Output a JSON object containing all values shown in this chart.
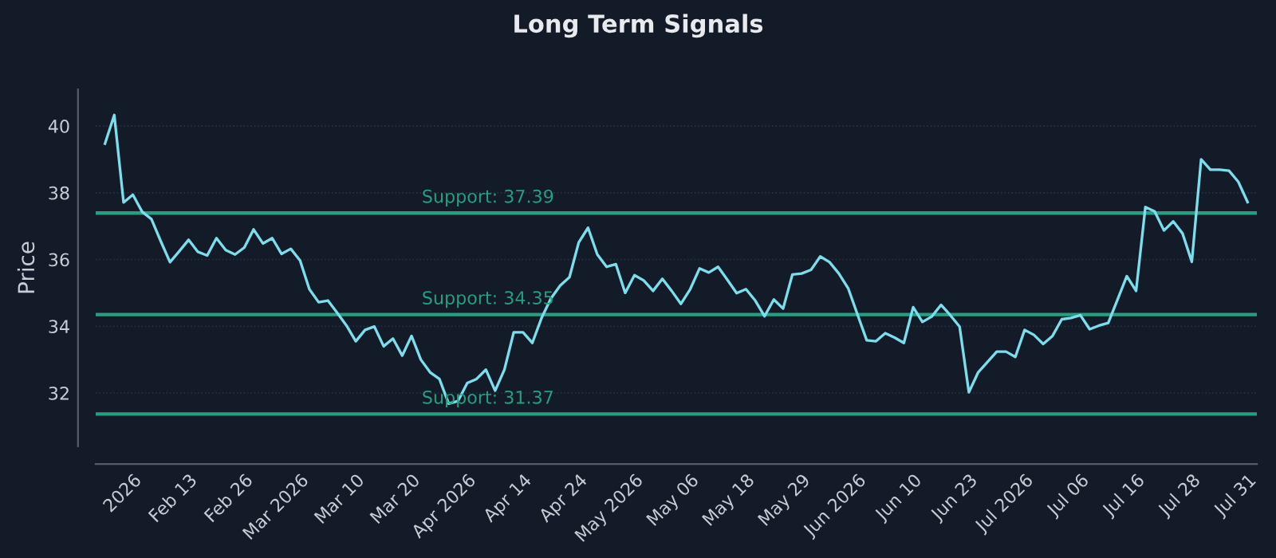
{
  "chart_data": {
    "type": "line",
    "title": "Long Term Signals",
    "ylabel": "Price",
    "categories": [
      null,
      null,
      null,
      "2026",
      null,
      null,
      null,
      null,
      null,
      "Feb 13",
      null,
      null,
      null,
      null,
      null,
      "Feb 26",
      null,
      null,
      null,
      null,
      null,
      "Mar 2026",
      null,
      null,
      null,
      null,
      null,
      "Mar 10",
      null,
      null,
      null,
      null,
      null,
      "Mar 20",
      null,
      null,
      null,
      null,
      null,
      "Apr 2026",
      null,
      null,
      null,
      null,
      null,
      "Apr 14",
      null,
      null,
      null,
      null,
      null,
      "Apr 24",
      null,
      null,
      null,
      null,
      null,
      "May 2026",
      null,
      null,
      null,
      null,
      null,
      "May 06",
      null,
      null,
      null,
      null,
      null,
      "May 18",
      null,
      null,
      null,
      null,
      null,
      "May 29",
      null,
      null,
      null,
      null,
      null,
      "Jun 2026",
      null,
      null,
      null,
      null,
      null,
      "Jun 10",
      null,
      null,
      null,
      null,
      null,
      "Jun 23",
      null,
      null,
      null,
      null,
      null,
      "Jul 2026",
      null,
      null,
      null,
      null,
      null,
      "Jul 06",
      null,
      null,
      null,
      null,
      null,
      "Jul 16",
      null,
      null,
      null,
      null,
      null,
      "Jul 28",
      null,
      null,
      null,
      null,
      null,
      "Jul 31"
    ],
    "series": [
      {
        "color": "#7fdcec",
        "values": [
          39.47,
          40.33,
          37.71,
          37.94,
          37.43,
          37.21,
          36.55,
          35.92,
          36.25,
          36.59,
          36.23,
          36.12,
          36.64,
          36.28,
          36.15,
          36.36,
          36.9,
          36.48,
          36.64,
          36.17,
          36.32,
          35.97,
          35.11,
          34.72,
          34.77,
          34.4,
          34.02,
          33.55,
          33.89,
          33.99,
          33.4,
          33.63,
          33.12,
          33.71,
          33.0,
          32.62,
          32.42,
          31.68,
          31.76,
          32.3,
          32.42,
          32.7,
          32.07,
          32.7,
          33.82,
          33.82,
          33.5,
          34.25,
          34.83,
          35.22,
          35.47,
          36.51,
          36.95,
          36.15,
          35.78,
          35.86,
          35.0,
          35.53,
          35.37,
          35.06,
          35.42,
          35.06,
          34.67,
          35.11,
          35.73,
          35.61,
          35.78,
          35.39,
          34.99,
          35.11,
          34.77,
          34.3,
          34.8,
          34.53,
          35.55,
          35.58,
          35.69,
          36.09,
          35.92,
          35.58,
          35.14,
          34.36,
          33.58,
          33.55,
          33.79,
          33.66,
          33.5,
          34.57,
          34.13,
          34.29,
          34.64,
          34.33,
          33.99,
          32.02,
          32.62,
          32.93,
          33.24,
          33.24,
          33.08,
          33.89,
          33.74,
          33.47,
          33.71,
          34.21,
          34.25,
          34.33,
          33.91,
          34.02,
          34.1,
          34.8,
          35.5,
          35.06,
          37.57,
          37.44,
          36.87,
          37.14,
          36.78,
          35.93,
          39.0,
          38.69,
          38.69,
          38.66,
          38.33,
          37.72
        ]
      }
    ],
    "ylim": [
      30.4,
      41.1
    ],
    "yticks": [
      32,
      34,
      36,
      38,
      40
    ],
    "grid": "y",
    "legend": false,
    "marker": "none",
    "line_style": "solid",
    "ref_lines": [
      {
        "axis": "y",
        "value": 37.39,
        "label": "Support: 37.39",
        "color": "#2a9d80"
      },
      {
        "axis": "y",
        "value": 34.35,
        "label": "Support: 34.35",
        "color": "#2a9d80"
      },
      {
        "axis": "y",
        "value": 31.37,
        "label": "Support: 31.37",
        "color": "#2a9d80"
      }
    ]
  }
}
